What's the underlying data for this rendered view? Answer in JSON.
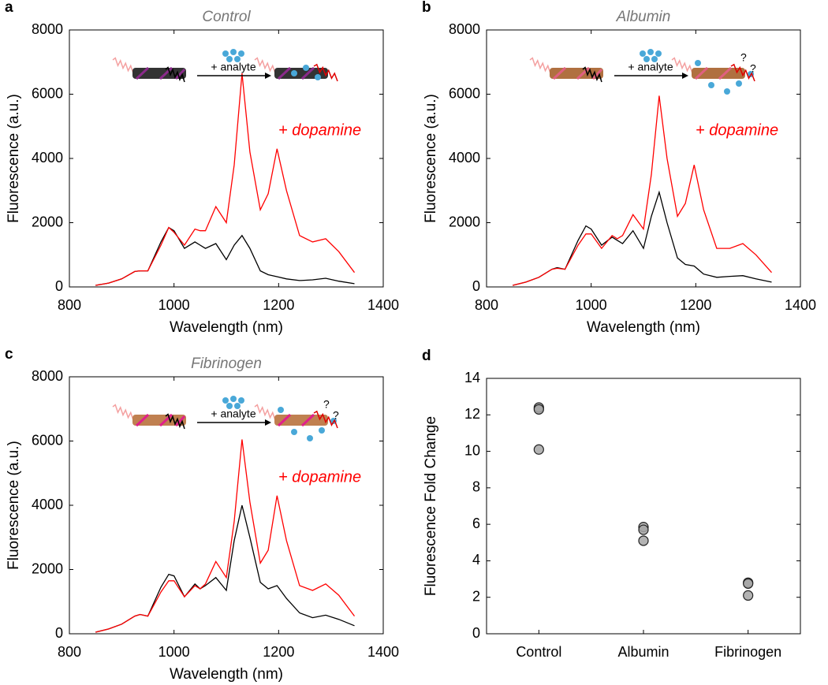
{
  "chart_data": [
    {
      "type": "line",
      "panel_label": "a",
      "title": "Control",
      "annotation": "+ dopamine",
      "inset_text": "+ analyte",
      "xlabel": "Wavelength (nm)",
      "ylabel": "Fluorescence (a.u.)",
      "xlim": [
        800,
        1400
      ],
      "xticks": [
        800,
        1000,
        1200,
        1400
      ],
      "ylim": [
        0,
        8000
      ],
      "yticks": [
        0,
        2000,
        4000,
        6000,
        8000
      ],
      "x": [
        850,
        875,
        900,
        925,
        935,
        950,
        975,
        990,
        1000,
        1020,
        1040,
        1050,
        1060,
        1080,
        1100,
        1115,
        1130,
        1145,
        1165,
        1180,
        1197,
        1215,
        1240,
        1265,
        1290,
        1315,
        1345
      ],
      "series": [
        {
          "color": "#000000",
          "values": [
            50,
            120,
            250,
            480,
            500,
            500,
            1400,
            1850,
            1750,
            1200,
            1400,
            1300,
            1200,
            1350,
            850,
            1300,
            1600,
            1200,
            500,
            380,
            320,
            250,
            200,
            220,
            270,
            180,
            100
          ]
        },
        {
          "color": "#ff0000",
          "values": [
            50,
            120,
            250,
            480,
            500,
            500,
            1300,
            1850,
            1700,
            1300,
            1800,
            1750,
            1750,
            2500,
            2000,
            3800,
            6650,
            4200,
            2400,
            2900,
            4300,
            3000,
            1600,
            1400,
            1500,
            1100,
            450
          ]
        }
      ]
    },
    {
      "type": "line",
      "panel_label": "b",
      "title": "Albumin",
      "annotation": "+ dopamine",
      "inset_text": "+ analyte",
      "inset_marks": [
        "?",
        "?"
      ],
      "xlabel": "Wavelength (nm)",
      "ylabel": "Fluorescence (a.u.)",
      "xlim": [
        800,
        1400
      ],
      "xticks": [
        800,
        1000,
        1200,
        1400
      ],
      "ylim": [
        0,
        8000
      ],
      "yticks": [
        0,
        2000,
        4000,
        6000,
        8000
      ],
      "x": [
        850,
        875,
        900,
        925,
        935,
        950,
        975,
        990,
        1000,
        1020,
        1040,
        1050,
        1060,
        1080,
        1100,
        1115,
        1130,
        1145,
        1165,
        1180,
        1197,
        1215,
        1240,
        1265,
        1290,
        1315,
        1345
      ],
      "series": [
        {
          "color": "#000000",
          "values": [
            50,
            150,
            300,
            550,
            600,
            550,
            1450,
            1900,
            1800,
            1300,
            1550,
            1450,
            1350,
            1750,
            1200,
            2200,
            2950,
            2000,
            900,
            700,
            650,
            400,
            300,
            330,
            350,
            250,
            150
          ]
        },
        {
          "color": "#ff0000",
          "values": [
            50,
            150,
            300,
            550,
            580,
            550,
            1300,
            1650,
            1650,
            1200,
            1600,
            1500,
            1600,
            2250,
            1800,
            3500,
            5950,
            4000,
            2200,
            2600,
            3800,
            2400,
            1200,
            1200,
            1350,
            1000,
            450
          ]
        }
      ]
    },
    {
      "type": "line",
      "panel_label": "c",
      "title": "Fibrinogen",
      "annotation": "+ dopamine",
      "inset_text": "+ analyte",
      "inset_marks": [
        "?",
        "?"
      ],
      "xlabel": "Wavelength (nm)",
      "ylabel": "Fluorescence (a.u.)",
      "xlim": [
        800,
        1400
      ],
      "xticks": [
        800,
        1000,
        1200,
        1400
      ],
      "ylim": [
        0,
        8000
      ],
      "yticks": [
        0,
        2000,
        4000,
        6000,
        8000
      ],
      "x": [
        850,
        875,
        900,
        925,
        935,
        950,
        975,
        990,
        1000,
        1020,
        1040,
        1050,
        1060,
        1080,
        1100,
        1115,
        1130,
        1145,
        1165,
        1180,
        1197,
        1215,
        1240,
        1265,
        1290,
        1315,
        1345
      ],
      "series": [
        {
          "color": "#000000",
          "values": [
            50,
            150,
            300,
            550,
            600,
            550,
            1450,
            1850,
            1800,
            1150,
            1550,
            1400,
            1500,
            1750,
            1350,
            2900,
            4000,
            3000,
            1600,
            1400,
            1500,
            1100,
            650,
            500,
            580,
            450,
            250
          ]
        },
        {
          "color": "#ff0000",
          "values": [
            50,
            150,
            300,
            550,
            600,
            550,
            1300,
            1650,
            1650,
            1150,
            1500,
            1400,
            1550,
            2250,
            1750,
            3500,
            6050,
            4100,
            2200,
            2600,
            4300,
            2900,
            1500,
            1350,
            1550,
            1200,
            550
          ]
        }
      ]
    },
    {
      "type": "strip",
      "panel_label": "d",
      "ylabel": "Fluorescence Fold Change",
      "categories": [
        "Control",
        "Albumin",
        "Fibrinogen"
      ],
      "color": "#a6a6a6",
      "values": [
        [
          12.4,
          12.3,
          10.1
        ],
        [
          5.85,
          5.7,
          5.1
        ],
        [
          2.8,
          2.75,
          2.1
        ]
      ],
      "ylim": [
        0,
        14
      ],
      "yticks": [
        0,
        2,
        4,
        6,
        8,
        10,
        12,
        14
      ]
    }
  ]
}
